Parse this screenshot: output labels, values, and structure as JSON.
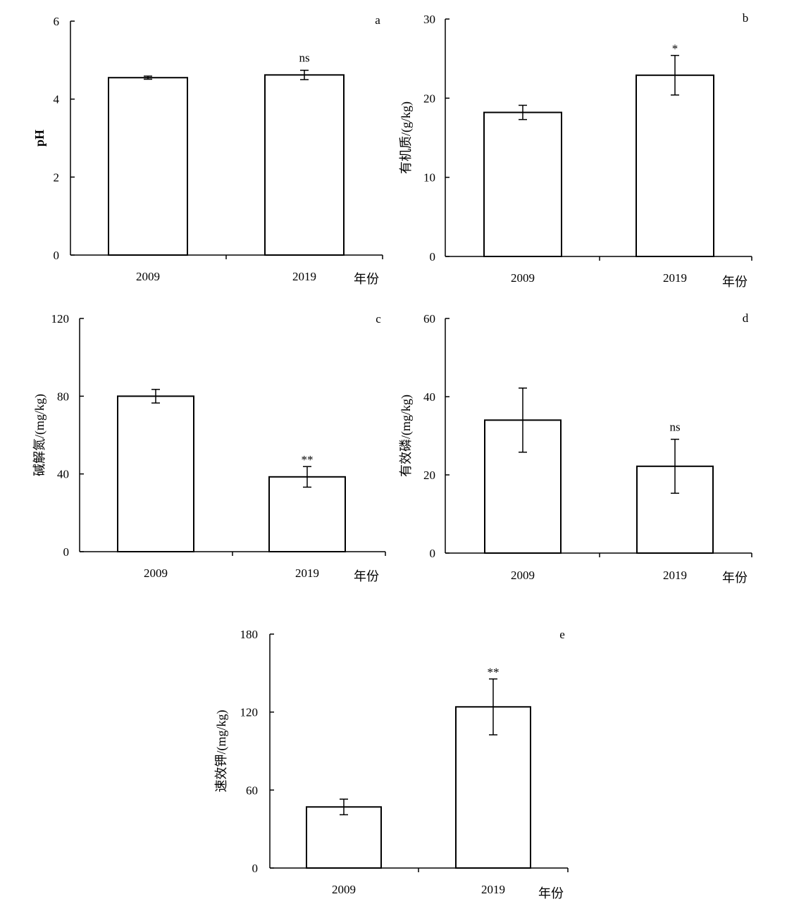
{
  "chart_data": [
    {
      "type": "bar",
      "panel_label": "a",
      "categories": [
        "2009",
        "2019"
      ],
      "values": [
        4.55,
        4.62
      ],
      "errors": [
        0.04,
        0.12
      ],
      "significance": [
        "",
        "ns"
      ],
      "ylabel": "pH",
      "xlabel": "年份",
      "ylim": [
        0,
        6
      ],
      "yticks": [
        "0",
        "2",
        "4",
        "6"
      ]
    },
    {
      "type": "bar",
      "panel_label": "b",
      "categories": [
        "2009",
        "2019"
      ],
      "values": [
        18.2,
        22.9
      ],
      "errors": [
        0.9,
        2.5
      ],
      "significance": [
        "",
        "*"
      ],
      "ylabel": "有机质/(g/kg)",
      "xlabel": "年份",
      "ylim": [
        0,
        30
      ],
      "yticks": [
        "0",
        "10",
        "20",
        "30"
      ]
    },
    {
      "type": "bar",
      "panel_label": "c",
      "categories": [
        "2009",
        "2019"
      ],
      "values": [
        80.0,
        38.5
      ],
      "errors": [
        3.5,
        5.3
      ],
      "significance": [
        "",
        "**"
      ],
      "ylabel": "碱解氮/(mg/kg)",
      "xlabel": "年份",
      "ylim": [
        0,
        120
      ],
      "yticks": [
        "0",
        "40",
        "80",
        "120"
      ]
    },
    {
      "type": "bar",
      "panel_label": "d",
      "categories": [
        "2009",
        "2019"
      ],
      "values": [
        34.0,
        22.2
      ],
      "errors": [
        8.2,
        6.9
      ],
      "significance": [
        "",
        "ns"
      ],
      "ylabel": "有效磷/(mg/kg)",
      "xlabel": "年份",
      "ylim": [
        0,
        60
      ],
      "yticks": [
        "0",
        "20",
        "40",
        "60"
      ]
    },
    {
      "type": "bar",
      "panel_label": "e",
      "categories": [
        "2009",
        "2019"
      ],
      "values": [
        47.0,
        124.0
      ],
      "errors": [
        6.0,
        21.5
      ],
      "significance": [
        "",
        "**"
      ],
      "ylabel": "速效钾/(mg/kg)",
      "xlabel": "年份",
      "ylim": [
        0,
        180
      ],
      "yticks": [
        "0",
        "60",
        "120",
        "180"
      ]
    }
  ]
}
